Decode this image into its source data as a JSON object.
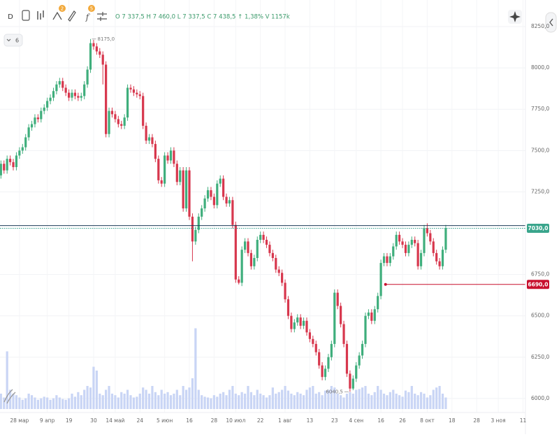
{
  "toolbar": {
    "interval": "D",
    "badges": [
      "2",
      "5"
    ],
    "indicators": "6"
  },
  "chart_data": {
    "type": "candlestick",
    "legend_text": "O 7 337,5 H 7 460,0 L 7 337,5 C 7 438,5 ↑ 1,38% V 1157k",
    "up_color": "#3fae7c",
    "down_color": "#d7374d",
    "volume_color": "#c9d5f5",
    "grid": true,
    "xlim": [
      -6.3,
      163.8
    ],
    "ylim": [
      5915,
      8411
    ],
    "vlim": [
      0,
      160
    ],
    "yticks": [
      {
        "value": 6000,
        "label": "6000,0"
      },
      {
        "value": 6250,
        "label": "6250,0"
      },
      {
        "value": 6500,
        "label": "6500,0"
      },
      {
        "value": 6750,
        "label": "6750,0"
      },
      {
        "value": 7250,
        "label": "7250,0"
      },
      {
        "value": 7500,
        "label": "7500,0"
      },
      {
        "value": 7750,
        "label": "7750,0"
      },
      {
        "value": 8000,
        "label": "8000,0"
      },
      {
        "value": 8250,
        "label": "8250,0"
      }
    ],
    "xticks": [
      {
        "value": 0,
        "label": "28 мар"
      },
      {
        "value": 9,
        "label": "9 апр"
      },
      {
        "value": 16,
        "label": "19"
      },
      {
        "value": 24,
        "label": "30"
      },
      {
        "value": 31,
        "label": "14 май"
      },
      {
        "value": 39,
        "label": "24"
      },
      {
        "value": 47,
        "label": "5 июн"
      },
      {
        "value": 55,
        "label": "16"
      },
      {
        "value": 63,
        "label": "28"
      },
      {
        "value": 70,
        "label": "10 июл"
      },
      {
        "value": 78,
        "label": "22"
      },
      {
        "value": 86,
        "label": "1 авг"
      },
      {
        "value": 94,
        "label": "13"
      },
      {
        "value": 102,
        "label": "23"
      },
      {
        "value": 109,
        "label": "4 сен"
      },
      {
        "value": 117,
        "label": "16"
      },
      {
        "value": 124,
        "label": "26"
      },
      {
        "value": 132,
        "label": "8 окт"
      },
      {
        "value": 140,
        "label": "18"
      },
      {
        "value": 148,
        "label": "28"
      },
      {
        "value": 155,
        "label": "3 ноя"
      },
      {
        "value": 163,
        "label": "11"
      }
    ],
    "x": [
      -6,
      -5,
      -4,
      -3,
      -2,
      -1,
      0,
      1,
      2,
      3,
      4,
      5,
      6,
      7,
      8,
      9,
      10,
      11,
      12,
      13,
      14,
      15,
      16,
      17,
      18,
      19,
      20,
      21,
      22,
      23,
      24,
      25,
      26,
      27,
      28,
      29,
      30,
      31,
      32,
      33,
      34,
      35,
      36,
      37,
      38,
      39,
      40,
      41,
      42,
      43,
      44,
      45,
      46,
      47,
      48,
      49,
      50,
      51,
      52,
      53,
      54,
      55,
      56,
      57,
      58,
      59,
      60,
      61,
      62,
      63,
      64,
      65,
      66,
      67,
      68,
      69,
      70,
      71,
      72,
      73,
      74,
      75,
      76,
      77,
      78,
      79,
      80,
      81,
      82,
      83,
      84,
      85,
      86,
      87,
      88,
      89,
      90,
      91,
      92,
      93,
      94,
      95,
      96,
      97,
      98,
      99,
      100,
      101,
      102,
      103,
      104,
      105,
      106,
      107,
      108,
      109,
      110,
      111,
      112,
      113,
      114,
      115,
      116,
      117,
      118,
      119,
      120,
      121,
      122,
      123,
      124,
      125,
      126,
      127,
      128,
      129,
      130,
      131,
      132,
      133,
      134,
      135,
      136,
      137,
      138
    ],
    "ohlc": [
      [
        7350,
        7440,
        7330,
        7420
      ],
      [
        7420,
        7440,
        7360,
        7380
      ],
      [
        7380,
        7470,
        7360,
        7450
      ],
      [
        7450,
        7470,
        7410,
        7430
      ],
      [
        7430,
        7450,
        7380,
        7400
      ],
      [
        7400,
        7490,
        7380,
        7470
      ],
      [
        7470,
        7520,
        7450,
        7500
      ],
      [
        7500,
        7540,
        7480,
        7520
      ],
      [
        7520,
        7600,
        7500,
        7580
      ],
      [
        7580,
        7660,
        7560,
        7640
      ],
      [
        7640,
        7680,
        7620,
        7660
      ],
      [
        7660,
        7720,
        7640,
        7700
      ],
      [
        7700,
        7720,
        7670,
        7690
      ],
      [
        7690,
        7760,
        7670,
        7740
      ],
      [
        7740,
        7780,
        7720,
        7760
      ],
      [
        7760,
        7820,
        7740,
        7800
      ],
      [
        7800,
        7840,
        7780,
        7820
      ],
      [
        7820,
        7880,
        7800,
        7860
      ],
      [
        7860,
        7920,
        7840,
        7900
      ],
      [
        7900,
        7940,
        7880,
        7920
      ],
      [
        7920,
        7940,
        7860,
        7880
      ],
      [
        7880,
        7900,
        7830,
        7850
      ],
      [
        7850,
        7870,
        7800,
        7820
      ],
      [
        7820,
        7870,
        7800,
        7850
      ],
      [
        7850,
        7870,
        7810,
        7830
      ],
      [
        7830,
        7850,
        7800,
        7820
      ],
      [
        7820,
        7850,
        7800,
        7830
      ],
      [
        7830,
        7920,
        7810,
        7900
      ],
      [
        7900,
        8010,
        7880,
        7990
      ],
      [
        7990,
        8175,
        7970,
        8150
      ],
      [
        8150,
        8170,
        8110,
        8130
      ],
      [
        8130,
        8150,
        8080,
        8100
      ],
      [
        8100,
        8120,
        8060,
        8080
      ],
      [
        8080,
        8100,
        7900,
        8020
      ],
      [
        8020,
        8040,
        7580,
        7600
      ],
      [
        7600,
        7760,
        7580,
        7740
      ],
      [
        7740,
        7760,
        7700,
        7720
      ],
      [
        7720,
        7740,
        7670,
        7690
      ],
      [
        7690,
        7710,
        7640,
        7660
      ],
      [
        7660,
        7680,
        7630,
        7650
      ],
      [
        7650,
        7720,
        7630,
        7700
      ],
      [
        7700,
        7900,
        7680,
        7880
      ],
      [
        7880,
        7900,
        7850,
        7870
      ],
      [
        7870,
        7890,
        7830,
        7850
      ],
      [
        7850,
        7870,
        7820,
        7840
      ],
      [
        7840,
        7860,
        7810,
        7830
      ],
      [
        7830,
        7850,
        7630,
        7650
      ],
      [
        7650,
        7670,
        7540,
        7560
      ],
      [
        7560,
        7600,
        7540,
        7580
      ],
      [
        7580,
        7600,
        7520,
        7540
      ],
      [
        7540,
        7560,
        7430,
        7450
      ],
      [
        7450,
        7470,
        7300,
        7320
      ],
      [
        7320,
        7340,
        7280,
        7300
      ],
      [
        7300,
        7490,
        7280,
        7470
      ],
      [
        7470,
        7490,
        7420,
        7440
      ],
      [
        7440,
        7520,
        7420,
        7500
      ],
      [
        7500,
        7520,
        7400,
        7420
      ],
      [
        7420,
        7440,
        7290,
        7310
      ],
      [
        7310,
        7400,
        7290,
        7380
      ],
      [
        7380,
        7400,
        7130,
        7150
      ],
      [
        7150,
        7400,
        7130,
        7380
      ],
      [
        7380,
        7400,
        7080,
        7100
      ],
      [
        7100,
        7120,
        6830,
        6950
      ],
      [
        6950,
        7040,
        6930,
        7020
      ],
      [
        7020,
        7120,
        7000,
        7100
      ],
      [
        7100,
        7170,
        7080,
        7150
      ],
      [
        7150,
        7230,
        7130,
        7210
      ],
      [
        7210,
        7280,
        7190,
        7260
      ],
      [
        7260,
        7280,
        7200,
        7220
      ],
      [
        7220,
        7240,
        7150,
        7170
      ],
      [
        7170,
        7320,
        7150,
        7300
      ],
      [
        7300,
        7350,
        7280,
        7330
      ],
      [
        7330,
        7350,
        7200,
        7220
      ],
      [
        7220,
        7240,
        7160,
        7180
      ],
      [
        7180,
        7220,
        7160,
        7200
      ],
      [
        7200,
        7220,
        7030,
        7050
      ],
      [
        7050,
        7070,
        6700,
        6720
      ],
      [
        6720,
        6740,
        6690,
        6700
      ],
      [
        6700,
        6920,
        6680,
        6900
      ],
      [
        6900,
        6970,
        6880,
        6950
      ],
      [
        6950,
        6970,
        6860,
        6880
      ],
      [
        6880,
        6900,
        6780,
        6800
      ],
      [
        6800,
        6870,
        6780,
        6850
      ],
      [
        6850,
        6980,
        6830,
        6960
      ],
      [
        6960,
        7010,
        6940,
        6990
      ],
      [
        6990,
        7010,
        6940,
        6960
      ],
      [
        6960,
        6980,
        6910,
        6930
      ],
      [
        6930,
        6950,
        6860,
        6880
      ],
      [
        6880,
        6900,
        6830,
        6850
      ],
      [
        6850,
        6870,
        6760,
        6780
      ],
      [
        6780,
        6800,
        6740,
        6760
      ],
      [
        6760,
        6780,
        6680,
        6700
      ],
      [
        6700,
        6720,
        6580,
        6600
      ],
      [
        6600,
        6620,
        6480,
        6500
      ],
      [
        6500,
        6520,
        6400,
        6420
      ],
      [
        6420,
        6480,
        6400,
        6460
      ],
      [
        6460,
        6510,
        6440,
        6490
      ],
      [
        6490,
        6510,
        6420,
        6440
      ],
      [
        6440,
        6490,
        6420,
        6470
      ],
      [
        6470,
        6490,
        6380,
        6400
      ],
      [
        6400,
        6420,
        6340,
        6360
      ],
      [
        6360,
        6380,
        6310,
        6330
      ],
      [
        6330,
        6350,
        6260,
        6280
      ],
      [
        6280,
        6300,
        6180,
        6200
      ],
      [
        6200,
        6220,
        6110,
        6130
      ],
      [
        6130,
        6200,
        6110,
        6180
      ],
      [
        6180,
        6270,
        6160,
        6250
      ],
      [
        6250,
        6350,
        6230,
        6330
      ],
      [
        6330,
        6660,
        6310,
        6640
      ],
      [
        6640,
        6660,
        6540,
        6560
      ],
      [
        6560,
        6580,
        6430,
        6450
      ],
      [
        6450,
        6470,
        6310,
        6330
      ],
      [
        6330,
        6350,
        6130,
        6150
      ],
      [
        6150,
        6170,
        6040.5,
        6060
      ],
      [
        6060,
        6140,
        6050,
        6120
      ],
      [
        6120,
        6220,
        6100,
        6200
      ],
      [
        6200,
        6280,
        6180,
        6260
      ],
      [
        6260,
        6350,
        6240,
        6330
      ],
      [
        6330,
        6520,
        6310,
        6500
      ],
      [
        6500,
        6540,
        6480,
        6520
      ],
      [
        6520,
        6540,
        6450,
        6470
      ],
      [
        6470,
        6560,
        6450,
        6540
      ],
      [
        6540,
        6640,
        6520,
        6620
      ],
      [
        6620,
        6840,
        6600,
        6820
      ],
      [
        6820,
        6880,
        6800,
        6860
      ],
      [
        6860,
        6880,
        6800,
        6820
      ],
      [
        6820,
        6880,
        6800,
        6860
      ],
      [
        6860,
        6940,
        6840,
        6920
      ],
      [
        6920,
        7010,
        6900,
        6990
      ],
      [
        6990,
        7010,
        6930,
        6950
      ],
      [
        6950,
        6970,
        6910,
        6930
      ],
      [
        6930,
        6950,
        6860,
        6880
      ],
      [
        6880,
        6950,
        6860,
        6930
      ],
      [
        6930,
        6980,
        6910,
        6960
      ],
      [
        6960,
        6980,
        6920,
        6940
      ],
      [
        6940,
        6960,
        6780,
        6800
      ],
      [
        6800,
        6900,
        6780,
        6880
      ],
      [
        6880,
        7050,
        6860,
        7030
      ],
      [
        7030,
        7060,
        6980,
        7000
      ],
      [
        7000,
        7020,
        6930,
        6950
      ],
      [
        6950,
        6970,
        6860,
        6880
      ],
      [
        6880,
        6900,
        6810,
        6830
      ],
      [
        6830,
        6850,
        6780,
        6800
      ],
      [
        6800,
        6920,
        6780,
        6900
      ],
      [
        6900,
        7050,
        6880,
        7030
      ]
    ],
    "volume": [
      20,
      15,
      75,
      25,
      20,
      18,
      15,
      12,
      14,
      20,
      18,
      15,
      12,
      14,
      16,
      15,
      12,
      14,
      18,
      15,
      13,
      12,
      14,
      20,
      16,
      22,
      18,
      25,
      30,
      28,
      55,
      50,
      20,
      18,
      25,
      30,
      20,
      18,
      15,
      22,
      20,
      25,
      18,
      15,
      16,
      20,
      28,
      25,
      20,
      30,
      22,
      18,
      25,
      20,
      22,
      18,
      20,
      25,
      18,
      30,
      25,
      28,
      40,
      105,
      25,
      18,
      16,
      15,
      14,
      18,
      16,
      20,
      22,
      18,
      25,
      30,
      20,
      18,
      22,
      20,
      30,
      22,
      18,
      25,
      20,
      18,
      15,
      18,
      28,
      20,
      22,
      25,
      30,
      24,
      20,
      18,
      22,
      20,
      18,
      25,
      28,
      30,
      20,
      22,
      18,
      24,
      25,
      30,
      28,
      20,
      18,
      15,
      20,
      22,
      20,
      25,
      26,
      28,
      30,
      20,
      18,
      22,
      30,
      25,
      20,
      18,
      22,
      25,
      20,
      18,
      16,
      24,
      22,
      30,
      20,
      18,
      22,
      20,
      15,
      18,
      25,
      28,
      30,
      20,
      15
    ],
    "levels": [
      {
        "value": 7046,
        "color": "#1d3b58",
        "style": "solid"
      },
      {
        "value": 7030,
        "color": "#2e9c8a",
        "style": "dotted"
      }
    ],
    "last_price": {
      "value": 7030,
      "label": "7030,0",
      "color": "#3aa58c"
    },
    "alert": {
      "value": 6690,
      "label": "6690,0",
      "x": 118.5,
      "color": "#c8102e"
    },
    "annotations": [
      {
        "x": 23,
        "value": 8175,
        "label": "8175,0"
      },
      {
        "x": 107,
        "value": 6040.5,
        "label": "6040,5"
      }
    ]
  }
}
